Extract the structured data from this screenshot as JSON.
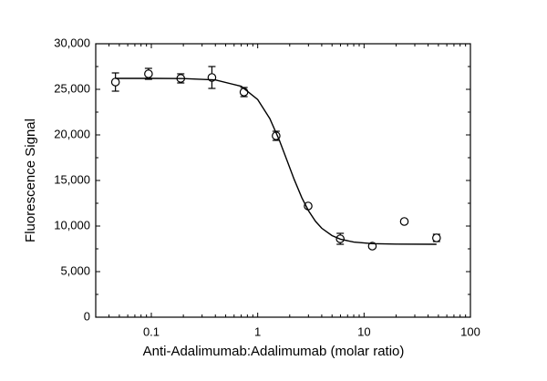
{
  "chart_data": {
    "type": "scatter",
    "x_label": "Anti-Adalimumab:Adalimumab (molar ratio)",
    "y_label": "Fluorescence Signal",
    "xlog": true,
    "xlim": [
      0.03,
      100
    ],
    "xticks": [
      0.1,
      1,
      10,
      100
    ],
    "ylim": [
      0,
      30000
    ],
    "yticks": [
      0,
      {
        "value": 5000,
        "label": "5,000"
      },
      {
        "value": 10000,
        "label": "10,000"
      },
      {
        "value": 15000,
        "label": "15,000"
      },
      {
        "value": 20000,
        "label": "20,000"
      },
      {
        "value": 25000,
        "label": "25,000"
      },
      {
        "value": 30000,
        "label": "30,000"
      }
    ],
    "series": [
      {
        "style": "marker",
        "color": "#000000",
        "x": [
          0.046,
          0.094,
          0.189,
          0.371,
          0.743,
          1.49,
          2.98,
          5.97,
          11.96,
          23.9,
          48
        ],
        "values": [
          25800,
          26700,
          26200,
          26300,
          24700,
          19900,
          12200,
          8600,
          7800,
          10500,
          8700
        ],
        "errors": [
          1000,
          600,
          500,
          1200,
          500,
          500,
          200,
          600,
          200,
          200,
          400
        ]
      },
      {
        "style": "line",
        "color": "#000000",
        "x": [
          0.046,
          0.1,
          0.2,
          0.4,
          0.7,
          1,
          1.3,
          1.6,
          1.9,
          2.2,
          2.6,
          3,
          3.5,
          4,
          5,
          6,
          8,
          12,
          20,
          48
        ],
        "values": [
          26200,
          26200,
          26180,
          26030,
          25330,
          23880,
          21790,
          19400,
          17100,
          15130,
          13110,
          11690,
          10510,
          9760,
          8950,
          8560,
          8240,
          8070,
          8020,
          8000
        ]
      }
    ]
  }
}
